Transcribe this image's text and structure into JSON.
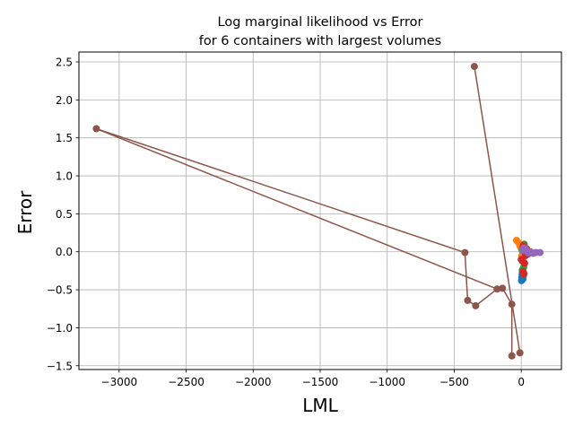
{
  "chart_data": {
    "type": "scatter",
    "title": "Log marginal likelihood vs Error\nfor 6 containers with largest volumes",
    "xlabel": "LML",
    "ylabel": "Error",
    "xlim": [
      -3300,
      300
    ],
    "ylim": [
      -1.55,
      2.63
    ],
    "xticks": [
      -3000,
      -2500,
      -2000,
      -1500,
      -1000,
      -500,
      0
    ],
    "xtick_labels": [
      "−3000",
      "−2500",
      "−2000",
      "−1500",
      "−1000",
      "−500",
      "0"
    ],
    "yticks": [
      -1.5,
      -1.0,
      -0.5,
      0.0,
      0.5,
      1.0,
      1.5,
      2.0,
      2.5
    ],
    "ytick_labels": [
      "−1.5",
      "−1.0",
      "−0.5",
      "0.0",
      "0.5",
      "1.0",
      "1.5",
      "2.0",
      "2.5"
    ],
    "grid": true,
    "legend": "none",
    "series": [
      {
        "color": "#1f77b4",
        "x": [
          2,
          4,
          6,
          8,
          10,
          12,
          14
        ],
        "y": [
          -0.38,
          -0.34,
          -0.3,
          -0.27,
          -0.32,
          -0.36,
          -0.33
        ]
      },
      {
        "color": "#ff7f0e",
        "x": [
          -35,
          -20,
          -10,
          0,
          5,
          10
        ],
        "y": [
          0.15,
          0.12,
          0.08,
          0.04,
          -0.05,
          -0.1
        ]
      },
      {
        "color": "#2ca02c",
        "x": [
          8,
          14,
          18,
          22,
          12,
          6
        ],
        "y": [
          -0.24,
          -0.27,
          -0.2,
          0.1,
          0.06,
          0.02
        ]
      },
      {
        "color": "#d62728",
        "x": [
          0,
          8,
          14,
          20,
          30,
          40,
          50,
          15,
          25,
          35
        ],
        "y": [
          -0.1,
          -0.12,
          -0.26,
          -0.29,
          -0.05,
          0.04,
          -0.03,
          0.08,
          -0.15,
          0.02
        ]
      },
      {
        "color": "#9467bd",
        "x": [
          10,
          30,
          50,
          70,
          90,
          110,
          140,
          60,
          20
        ],
        "y": [
          0.02,
          0.04,
          -0.01,
          0.0,
          -0.02,
          -0.01,
          -0.01,
          -0.02,
          0.05
        ]
      },
      {
        "color": "#8c564b",
        "x": [
          -3170,
          -420,
          -400,
          -350,
          -340,
          -180,
          -140,
          -70,
          -70,
          -10
        ],
        "y": [
          1.62,
          -0.01,
          -0.64,
          2.44,
          -0.71,
          -0.49,
          -0.48,
          -0.69,
          -1.37,
          -1.33
        ]
      }
    ],
    "lines": [
      {
        "color": "#8c564b",
        "x": [
          -3170,
          -420,
          -400,
          -340,
          -180,
          -140,
          -70,
          -70
        ],
        "y": [
          1.62,
          -0.01,
          -0.64,
          -0.71,
          -0.49,
          -0.48,
          -0.69,
          -1.37
        ]
      },
      {
        "color": "#8c564b",
        "x": [
          -3170,
          -180
        ],
        "y": [
          1.62,
          -0.49
        ]
      },
      {
        "color": "#8c564b",
        "x": [
          -350,
          -10
        ],
        "y": [
          2.44,
          -1.33
        ]
      }
    ]
  }
}
